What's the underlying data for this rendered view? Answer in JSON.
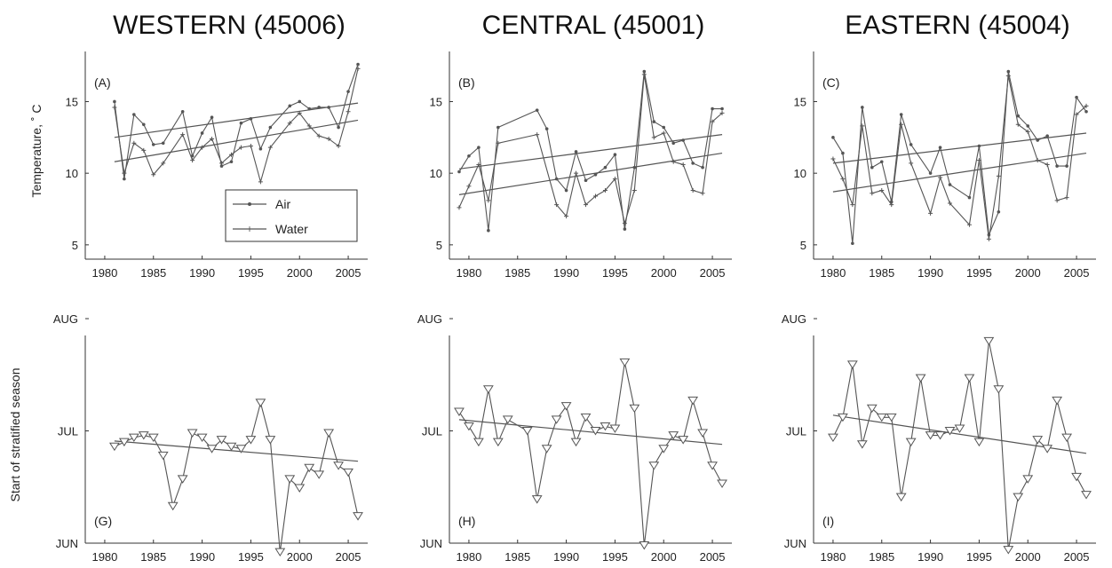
{
  "columns": [
    {
      "title": "WESTERN (45006)"
    },
    {
      "title": "CENTRAL (45001)"
    },
    {
      "title": "EASTERN (45004)"
    }
  ],
  "row_labels": {
    "temperature": "Temperature, ˚ C",
    "stratified": "Start of stratified season"
  },
  "legend": {
    "air": "Air",
    "water": "Water"
  },
  "colors": {
    "line": "#555555",
    "axis": "#333333",
    "marker_fill": "#ffffff"
  },
  "chart_data": [
    {
      "type": "line",
      "panel": "(A)",
      "column": "WESTERN (45006)",
      "xlim": [
        1978,
        2007
      ],
      "ylim": [
        4,
        18.5
      ],
      "xticks": [
        1980,
        1985,
        1990,
        1995,
        2000,
        2005
      ],
      "yticks": [
        5,
        10,
        15
      ],
      "series": [
        {
          "name": "Air",
          "x": [
            1981,
            1982,
            1983,
            1984,
            1985,
            1986,
            1988,
            1989,
            1990,
            1991,
            1992,
            1993,
            1994,
            1995,
            1996,
            1997,
            1999,
            2000,
            2001,
            2002,
            2003,
            2004,
            2005,
            2006
          ],
          "y": [
            15.0,
            9.6,
            14.1,
            13.4,
            12.0,
            12.1,
            14.3,
            11.2,
            12.8,
            13.9,
            10.5,
            10.8,
            13.5,
            13.8,
            11.7,
            13.2,
            14.7,
            15.0,
            14.5,
            14.6,
            14.6,
            13.2,
            15.7,
            17.6
          ]
        },
        {
          "name": "Water",
          "x": [
            1981,
            1982,
            1983,
            1984,
            1985,
            1986,
            1988,
            1989,
            1990,
            1991,
            1992,
            1993,
            1994,
            1995,
            1996,
            1997,
            1999,
            2000,
            2001,
            2002,
            2003,
            2004,
            2005,
            2006
          ],
          "y": [
            14.6,
            10.0,
            12.1,
            11.6,
            9.9,
            10.7,
            12.7,
            10.9,
            11.8,
            12.4,
            10.7,
            11.3,
            11.8,
            11.9,
            9.4,
            11.8,
            13.5,
            14.2,
            13.3,
            12.6,
            12.4,
            11.9,
            14.3,
            17.3
          ]
        }
      ],
      "trends": [
        {
          "x": [
            1981,
            2006
          ],
          "y": [
            12.5,
            14.9
          ]
        },
        {
          "x": [
            1981,
            2006
          ],
          "y": [
            10.8,
            13.7
          ]
        }
      ]
    },
    {
      "type": "line",
      "panel": "(B)",
      "column": "CENTRAL (45001)",
      "xlim": [
        1978,
        2007
      ],
      "ylim": [
        4,
        18.5
      ],
      "xticks": [
        1980,
        1985,
        1990,
        1995,
        2000,
        2005
      ],
      "yticks": [
        5,
        10,
        15
      ],
      "series": [
        {
          "name": "Air",
          "x": [
            1979,
            1980,
            1981,
            1982,
            1983,
            1987,
            1988,
            1989,
            1990,
            1991,
            1992,
            1993,
            1994,
            1995,
            1996,
            1997,
            1998,
            1999,
            2000,
            2001,
            2002,
            2003,
            2004,
            2005,
            2006
          ],
          "y": [
            10.1,
            11.2,
            11.8,
            6.0,
            13.2,
            14.4,
            13.1,
            9.6,
            8.8,
            11.5,
            9.5,
            9.9,
            10.4,
            11.3,
            6.1,
            10.4,
            17.1,
            13.6,
            13.2,
            12.1,
            12.3,
            10.7,
            10.4,
            14.5,
            14.5
          ]
        },
        {
          "name": "Water",
          "x": [
            1979,
            1980,
            1981,
            1982,
            1983,
            1987,
            1989,
            1990,
            1991,
            1992,
            1993,
            1994,
            1995,
            1996,
            1997,
            1998,
            1999,
            2000,
            2001,
            2002,
            2003,
            2004,
            2005,
            2006
          ],
          "y": [
            7.6,
            9.1,
            10.6,
            8.1,
            12.1,
            12.7,
            7.8,
            7.0,
            10.0,
            7.8,
            8.4,
            8.8,
            9.6,
            6.5,
            8.8,
            16.9,
            12.5,
            12.8,
            10.8,
            10.6,
            8.8,
            8.6,
            13.6,
            14.2
          ]
        }
      ],
      "trends": [
        {
          "x": [
            1979,
            2006
          ],
          "y": [
            10.3,
            12.7
          ]
        },
        {
          "x": [
            1979,
            2006
          ],
          "y": [
            8.5,
            11.4
          ]
        }
      ]
    },
    {
      "type": "line",
      "panel": "(C)",
      "column": "EASTERN (45004)",
      "xlim": [
        1978,
        2007
      ],
      "ylim": [
        4,
        18.5
      ],
      "xticks": [
        1980,
        1985,
        1990,
        1995,
        2000,
        2005
      ],
      "yticks": [
        5,
        10,
        15
      ],
      "series": [
        {
          "name": "Air",
          "x": [
            1980,
            1981,
            1982,
            1983,
            1984,
            1985,
            1986,
            1987,
            1988,
            1990,
            1991,
            1992,
            1994,
            1995,
            1996,
            1997,
            1998,
            1999,
            2000,
            2001,
            2002,
            2003,
            2004,
            2005,
            2006
          ],
          "y": [
            12.5,
            11.4,
            5.1,
            14.6,
            10.4,
            10.8,
            8.0,
            14.1,
            12.0,
            10.0,
            11.8,
            9.2,
            8.3,
            11.9,
            5.7,
            7.3,
            17.1,
            14.0,
            13.3,
            12.3,
            12.6,
            10.5,
            10.5,
            15.3,
            14.3
          ]
        },
        {
          "name": "Water",
          "x": [
            1980,
            1981,
            1982,
            1983,
            1984,
            1985,
            1986,
            1987,
            1988,
            1990,
            1991,
            1992,
            1994,
            1995,
            1996,
            1997,
            1998,
            1999,
            2000,
            2001,
            2002,
            2003,
            2004,
            2005,
            2006
          ],
          "y": [
            11.0,
            9.6,
            7.8,
            13.3,
            8.6,
            8.8,
            7.8,
            13.4,
            10.7,
            7.2,
            9.7,
            7.9,
            6.4,
            10.9,
            5.4,
            9.8,
            16.8,
            13.4,
            12.9,
            10.9,
            10.6,
            8.1,
            8.3,
            14.1,
            14.7
          ]
        }
      ],
      "trends": [
        {
          "x": [
            1980,
            2006
          ],
          "y": [
            10.7,
            12.8
          ]
        },
        {
          "x": [
            1980,
            2006
          ],
          "y": [
            8.7,
            11.4
          ]
        }
      ]
    },
    {
      "type": "line",
      "panel": "(G)",
      "column": "WESTERN (45006)",
      "xlim": [
        1978,
        2007
      ],
      "ylim": [
        "JUN",
        "AUG+"
      ],
      "xticks": [
        1980,
        1985,
        1990,
        1995,
        2000,
        2005
      ],
      "yticks": [
        "JUN",
        "JUL",
        "AUG"
      ],
      "series": [
        {
          "name": "",
          "x": [
            1981,
            1982,
            1983,
            1984,
            1985,
            1986,
            1987,
            1988,
            1989,
            1990,
            1991,
            1992,
            1993,
            1994,
            1995,
            1996,
            1997,
            1998,
            1999,
            2000,
            2001,
            2002,
            2003,
            2004,
            2005,
            2006
          ],
          "y": [
            1.86,
            1.9,
            1.94,
            1.96,
            1.94,
            1.78,
            1.33,
            1.57,
            1.98,
            1.94,
            1.84,
            1.92,
            1.86,
            1.84,
            1.92,
            2.25,
            1.92,
            0.92,
            1.57,
            1.49,
            1.67,
            1.61,
            1.98,
            1.69,
            1.63,
            1.24
          ]
        }
      ],
      "trends": [
        {
          "x": [
            1981,
            2006
          ],
          "y": [
            1.91,
            1.73
          ]
        }
      ]
    },
    {
      "type": "line",
      "panel": "(H)",
      "column": "CENTRAL (45001)",
      "xlim": [
        1978,
        2007
      ],
      "ylim": [
        "JUN",
        "AUG+"
      ],
      "xticks": [
        1980,
        1985,
        1990,
        1995,
        2000,
        2005
      ],
      "yticks": [
        "JUN",
        "JUL",
        "AUG"
      ],
      "series": [
        {
          "name": "",
          "x": [
            1979,
            1980,
            1981,
            1982,
            1983,
            1984,
            1986,
            1987,
            1988,
            1989,
            1990,
            1991,
            1992,
            1993,
            1994,
            1995,
            1996,
            1997,
            1998,
            1999,
            2000,
            2001,
            2002,
            2003,
            2004,
            2005,
            2006
          ],
          "y": [
            2.17,
            2.04,
            1.9,
            2.37,
            1.9,
            2.1,
            2.0,
            1.39,
            1.84,
            2.1,
            2.22,
            1.9,
            2.12,
            2.0,
            2.04,
            2.02,
            2.61,
            2.2,
            0.98,
            1.69,
            1.84,
            1.96,
            1.92,
            2.27,
            1.98,
            1.69,
            1.53
          ]
        }
      ],
      "trends": [
        {
          "x": [
            1979,
            2006
          ],
          "y": [
            2.1,
            1.88
          ]
        }
      ]
    },
    {
      "type": "line",
      "panel": "(I)",
      "column": "EASTERN (45004)",
      "xlim": [
        1978,
        2007
      ],
      "ylim": [
        "JUN",
        "AUG+"
      ],
      "xticks": [
        1980,
        1985,
        1990,
        1995,
        2000,
        2005
      ],
      "yticks": [
        "JUN",
        "JUL",
        "AUG"
      ],
      "series": [
        {
          "name": "",
          "x": [
            1980,
            1981,
            1982,
            1983,
            1984,
            1985,
            1986,
            1987,
            1988,
            1989,
            1990,
            1991,
            1992,
            1993,
            1994,
            1995,
            1996,
            1997,
            1998,
            1999,
            2000,
            2001,
            2002,
            2003,
            2004,
            2005,
            2006
          ],
          "y": [
            1.94,
            2.12,
            2.59,
            1.88,
            2.2,
            2.12,
            2.12,
            1.41,
            1.9,
            2.47,
            1.96,
            1.96,
            2.0,
            2.02,
            2.47,
            1.9,
            2.8,
            2.37,
            0.94,
            1.41,
            1.57,
            1.92,
            1.84,
            2.27,
            1.94,
            1.59,
            1.43
          ]
        }
      ],
      "trends": [
        {
          "x": [
            1980,
            2006
          ],
          "y": [
            2.14,
            1.8
          ]
        }
      ]
    }
  ]
}
